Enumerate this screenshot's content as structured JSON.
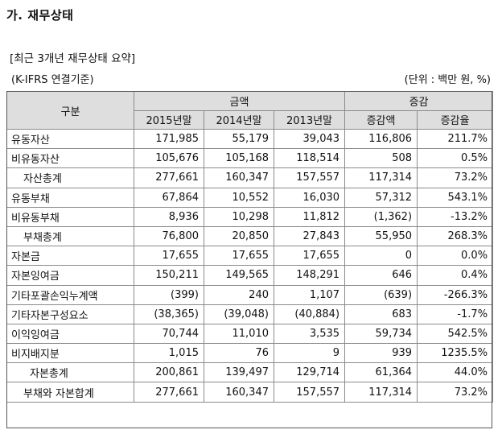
{
  "heading": "가. 재무상태",
  "subtitle": "[최근 3개년 재무상태 요약]",
  "basis": "(K-IFRS 연결기준)",
  "unit": "(단위 : 백만 원, %)",
  "table": {
    "header": {
      "category": "구분",
      "amount_group": "금액",
      "change_group": "증감",
      "columns": [
        "2015년말",
        "2014년말",
        "2013년말",
        "증감액",
        "증감율"
      ]
    },
    "rows": [
      {
        "label": "유동자산",
        "indent": 0,
        "values": [
          "171,985",
          "55,179",
          "39,043",
          "116,806",
          "211.7%"
        ]
      },
      {
        "label": "비유동자산",
        "indent": 0,
        "values": [
          "105,676",
          "105,168",
          "118,514",
          "508",
          "0.5%"
        ]
      },
      {
        "label": "자산총계",
        "indent": 1,
        "values": [
          "277,661",
          "160,347",
          "157,557",
          "117,314",
          "73.2%"
        ]
      },
      {
        "label": "유동부채",
        "indent": 0,
        "values": [
          "67,864",
          "10,552",
          "16,030",
          "57,312",
          "543.1%"
        ]
      },
      {
        "label": "비유동부채",
        "indent": 0,
        "values": [
          "8,936",
          "10,298",
          "11,812",
          "(1,362)",
          "-13.2%"
        ]
      },
      {
        "label": "부채총계",
        "indent": 2,
        "values": [
          "76,800",
          "20,850",
          "27,843",
          "55,950",
          "268.3%"
        ]
      },
      {
        "label": "자본금",
        "indent": 0,
        "values": [
          "17,655",
          "17,655",
          "17,655",
          "0",
          "0.0%"
        ]
      },
      {
        "label": "자본잉여금",
        "indent": 0,
        "values": [
          "150,211",
          "149,565",
          "148,291",
          "646",
          "0.4%"
        ]
      },
      {
        "label": "기타포괄손익누계액",
        "indent": 0,
        "values": [
          "(399)",
          "240",
          "1,107",
          "(639)",
          "-266.3%"
        ]
      },
      {
        "label": "기타자본구성요소",
        "indent": 0,
        "values": [
          "(38,365)",
          "(39,048)",
          "(40,884)",
          "683",
          "-1.7%"
        ]
      },
      {
        "label": "이익잉여금",
        "indent": 0,
        "values": [
          "70,744",
          "11,010",
          "3,535",
          "59,734",
          "542.5%"
        ]
      },
      {
        "label": "비지배지분",
        "indent": 0,
        "values": [
          "1,015",
          "76",
          "9",
          "939",
          "1235.5%"
        ]
      },
      {
        "label": "자본총계",
        "indent": 3,
        "values": [
          "200,861",
          "139,497",
          "129,714",
          "61,364",
          "44.0%"
        ]
      },
      {
        "label": "부채와 자본합계",
        "indent": 1,
        "values": [
          "277,661",
          "160,347",
          "157,557",
          "117,314",
          "73.2%"
        ]
      }
    ]
  }
}
